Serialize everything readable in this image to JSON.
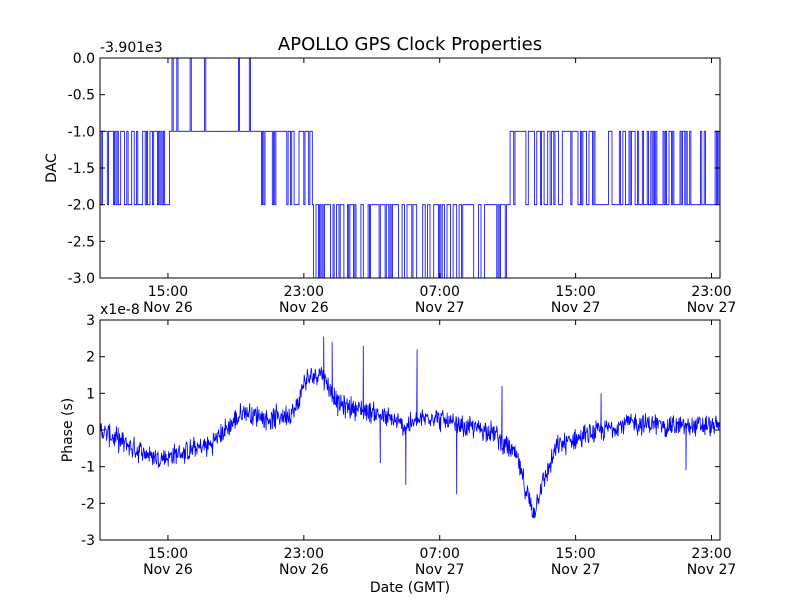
{
  "figure": {
    "title": "APOLLO GPS Clock Properties",
    "xlabel": "Date (GMT)",
    "line_color": "#0000ff"
  },
  "chart_data": [
    {
      "type": "line",
      "title": "APOLLO GPS Clock Properties",
      "ylabel": "DAC",
      "offset_text": "-3.901e3",
      "ylim": [
        -3.0,
        0.0
      ],
      "yticks": [
        "0.0",
        "-0.5",
        "-1.0",
        "-1.5",
        "-2.0",
        "-2.5",
        "-3.0"
      ],
      "xticks": [
        {
          "time": "15:00",
          "day": "Nov 26"
        },
        {
          "time": "23:00",
          "day": "Nov 26"
        },
        {
          "time": "07:00",
          "day": "Nov 27"
        },
        {
          "time": "15:00",
          "day": "Nov 27"
        },
        {
          "time": "23:00",
          "day": "Nov 27"
        }
      ],
      "x_start": "Nov 26 11:00",
      "x_end": "Nov 27 23:30",
      "series": [
        {
          "segments": [
            {
              "from": "Nov 26 11:00",
              "to": "Nov 26 15:10",
              "level": -1,
              "toggle_to": -2,
              "activity": 0.5
            },
            {
              "from": "Nov 26 15:10",
              "to": "Nov 26 20:00",
              "level": -1,
              "toggle_to": 0,
              "activity": 0.03
            },
            {
              "from": "Nov 26 20:00",
              "to": "Nov 26 23:30",
              "level": -1,
              "toggle_to": -2,
              "activity": 0.28
            },
            {
              "from": "Nov 26 23:30",
              "to": "Nov 27 11:00",
              "level": -2,
              "toggle_to": -3,
              "activity": 0.45
            },
            {
              "from": "Nov 27 11:00",
              "to": "Nov 27 16:00",
              "level": -1,
              "toggle_to": -2,
              "activity": 0.2
            },
            {
              "from": "Nov 27 16:00",
              "to": "Nov 27 23:30",
              "level": -1,
              "toggle_to": -2,
              "activity": 0.7
            }
          ]
        }
      ]
    },
    {
      "type": "line",
      "ylabel": "Phase (s)",
      "offset_text": "x1e-8",
      "ylim": [
        -3,
        3
      ],
      "yticks": [
        "3",
        "2",
        "1",
        "0",
        "-1",
        "-2",
        "-3"
      ],
      "xticks": [
        {
          "time": "15:00",
          "day": "Nov 26"
        },
        {
          "time": "23:00",
          "day": "Nov 26"
        },
        {
          "time": "07:00",
          "day": "Nov 27"
        },
        {
          "time": "15:00",
          "day": "Nov 27"
        },
        {
          "time": "23:00",
          "day": "Nov 27"
        }
      ],
      "xlabel": "Date (GMT)",
      "x_start": "Nov 26 11:00",
      "x_end": "Nov 27 23:30",
      "series": [
        {
          "trend": [
            {
              "t": "Nov 26 11:00",
              "y": 0.0
            },
            {
              "t": "Nov 26 13:00",
              "y": -0.5
            },
            {
              "t": "Nov 26 14:30",
              "y": -0.8
            },
            {
              "t": "Nov 26 16:00",
              "y": -0.6
            },
            {
              "t": "Nov 26 17:30",
              "y": -0.4
            },
            {
              "t": "Nov 26 19:30",
              "y": 0.5
            },
            {
              "t": "Nov 26 21:00",
              "y": 0.3
            },
            {
              "t": "Nov 26 22:30",
              "y": 0.5
            },
            {
              "t": "Nov 26 23:00",
              "y": 1.3
            },
            {
              "t": "Nov 27 00:00",
              "y": 1.6
            },
            {
              "t": "Nov 27 01:00",
              "y": 0.7
            },
            {
              "t": "Nov 27 03:00",
              "y": 0.5
            },
            {
              "t": "Nov 27 05:00",
              "y": 0.1
            },
            {
              "t": "Nov 27 06:30",
              "y": 0.4
            },
            {
              "t": "Nov 27 08:00",
              "y": 0.1
            },
            {
              "t": "Nov 27 10:00",
              "y": 0.0
            },
            {
              "t": "Nov 27 11:30",
              "y": -0.7
            },
            {
              "t": "Nov 27 12:30",
              "y": -2.3
            },
            {
              "t": "Nov 27 13:00",
              "y": -1.5
            },
            {
              "t": "Nov 27 14:00",
              "y": -0.4
            },
            {
              "t": "Nov 27 16:00",
              "y": -0.1
            },
            {
              "t": "Nov 27 18:00",
              "y": 0.2
            },
            {
              "t": "Nov 27 21:00",
              "y": 0.1
            },
            {
              "t": "Nov 27 23:30",
              "y": 0.1
            }
          ],
          "noise_amplitude": 0.25,
          "spikes": [
            {
              "t": "Nov 27 00:10",
              "y": 2.55
            },
            {
              "t": "Nov 27 00:40",
              "y": 2.4
            },
            {
              "t": "Nov 27 02:30",
              "y": 2.3
            },
            {
              "t": "Nov 27 03:30",
              "y": -0.9
            },
            {
              "t": "Nov 27 05:00",
              "y": -1.5
            },
            {
              "t": "Nov 27 05:40",
              "y": 2.2
            },
            {
              "t": "Nov 27 08:00",
              "y": -1.75
            },
            {
              "t": "Nov 27 10:40",
              "y": 1.2
            },
            {
              "t": "Nov 27 16:30",
              "y": 1.0
            },
            {
              "t": "Nov 27 21:30",
              "y": -1.1
            }
          ]
        }
      ]
    }
  ]
}
